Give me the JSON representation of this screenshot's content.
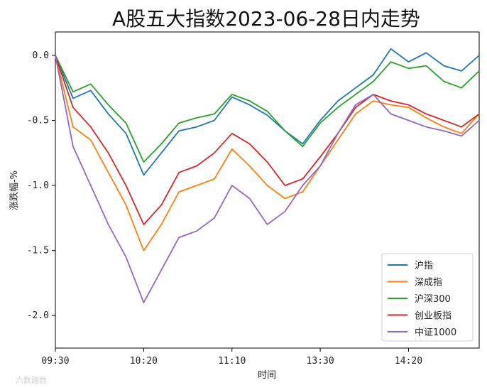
{
  "watermark": "六数路数",
  "chart_data": {
    "type": "line",
    "title": "A股五大指数2023-06-28日内走势",
    "xlabel": "时间",
    "ylabel": "涨跌幅-%",
    "xlim": [
      "09:30",
      "15:00"
    ],
    "ylim": [
      -2.25,
      0.18
    ],
    "xticks": [
      "09:30",
      "10:20",
      "11:10",
      "13:30",
      "14:20"
    ],
    "yticks": [
      0.0,
      -0.5,
      -1.0,
      -1.5,
      -2.0
    ],
    "ytick_labels": [
      "0.0",
      "-0.5",
      "-1.0",
      "-1.5",
      "-2.0"
    ],
    "legend_position": "lower-right",
    "grid": false,
    "x": [
      "09:30",
      "09:40",
      "09:50",
      "10:00",
      "10:10",
      "10:20",
      "10:30",
      "10:40",
      "10:50",
      "11:00",
      "11:10",
      "11:20",
      "11:30",
      "13:10",
      "13:20",
      "13:30",
      "13:40",
      "13:50",
      "14:00",
      "14:10",
      "14:20",
      "14:30",
      "14:40",
      "14:50",
      "15:00"
    ],
    "series": [
      {
        "name": "沪指",
        "color": "#1f77b4",
        "values": [
          0.0,
          -0.33,
          -0.27,
          -0.45,
          -0.6,
          -0.92,
          -0.75,
          -0.58,
          -0.55,
          -0.5,
          -0.32,
          -0.38,
          -0.46,
          -0.58,
          -0.68,
          -0.5,
          -0.35,
          -0.25,
          -0.15,
          0.05,
          -0.05,
          0.02,
          -0.08,
          -0.12,
          0.0
        ]
      },
      {
        "name": "深成指",
        "color": "#ff7f0e",
        "values": [
          0.0,
          -0.55,
          -0.65,
          -0.9,
          -1.15,
          -1.5,
          -1.3,
          -1.05,
          -1.0,
          -0.95,
          -0.72,
          -0.85,
          -1.0,
          -1.1,
          -1.05,
          -0.85,
          -0.65,
          -0.45,
          -0.35,
          -0.38,
          -0.4,
          -0.48,
          -0.55,
          -0.6,
          -0.45
        ]
      },
      {
        "name": "沪深300",
        "color": "#2ca02c",
        "values": [
          0.0,
          -0.28,
          -0.22,
          -0.38,
          -0.52,
          -0.82,
          -0.68,
          -0.52,
          -0.48,
          -0.45,
          -0.3,
          -0.35,
          -0.43,
          -0.58,
          -0.7,
          -0.52,
          -0.4,
          -0.3,
          -0.2,
          -0.05,
          -0.1,
          -0.08,
          -0.2,
          -0.25,
          -0.12
        ]
      },
      {
        "name": "创业板指",
        "color": "#d62728",
        "values": [
          0.0,
          -0.4,
          -0.55,
          -0.75,
          -1.0,
          -1.3,
          -1.15,
          -0.9,
          -0.85,
          -0.75,
          -0.6,
          -0.68,
          -0.82,
          -1.0,
          -0.95,
          -0.78,
          -0.6,
          -0.4,
          -0.3,
          -0.35,
          -0.38,
          -0.45,
          -0.5,
          -0.55,
          -0.45
        ]
      },
      {
        "name": "中证1000",
        "color": "#9467bd",
        "values": [
          0.0,
          -0.7,
          -1.0,
          -1.3,
          -1.55,
          -1.9,
          -1.65,
          -1.4,
          -1.35,
          -1.25,
          -1.0,
          -1.1,
          -1.3,
          -1.2,
          -1.0,
          -0.85,
          -0.6,
          -0.38,
          -0.3,
          -0.45,
          -0.5,
          -0.55,
          -0.58,
          -0.62,
          -0.5
        ]
      }
    ]
  }
}
